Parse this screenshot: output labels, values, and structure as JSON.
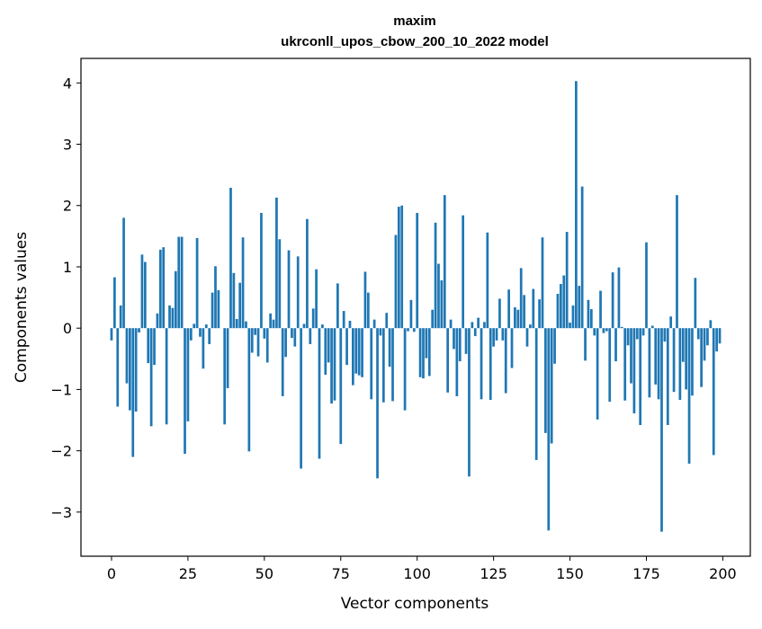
{
  "chart_data": {
    "type": "bar",
    "title_line1": "maxim",
    "title_line2": "ukrconll_upos_cbow_200_10_2022 model",
    "xlabel": "Vector components",
    "ylabel": "Components values",
    "xlim": [
      -10,
      209
    ],
    "ylim": [
      -3.72,
      4.4
    ],
    "xticks": [
      0,
      25,
      50,
      75,
      100,
      125,
      150,
      175,
      200
    ],
    "yticks": [
      -3,
      -2,
      -1,
      0,
      1,
      2,
      3,
      4
    ],
    "xtick_labels": [
      "0",
      "25",
      "50",
      "75",
      "100",
      "125",
      "150",
      "175",
      "200"
    ],
    "ytick_labels": [
      "−3",
      "−2",
      "−1",
      "0",
      "1",
      "2",
      "3",
      "4"
    ],
    "bar_color": "#1f77b4",
    "grid": false,
    "values": [
      -0.2,
      0.83,
      -1.28,
      0.37,
      1.8,
      -0.9,
      -1.34,
      -2.1,
      -1.36,
      -0.07,
      1.2,
      1.08,
      -0.57,
      -1.6,
      -0.6,
      0.24,
      1.28,
      1.32,
      -1.57,
      0.37,
      0.33,
      0.93,
      1.49,
      1.49,
      -2.05,
      -1.52,
      -0.2,
      0.07,
      1.47,
      -0.14,
      -0.66,
      0.06,
      -0.26,
      0.58,
      1.01,
      0.62,
      0.0,
      -1.57,
      -0.98,
      2.29,
      0.9,
      0.15,
      0.74,
      1.48,
      0.11,
      -2.01,
      -0.4,
      -0.11,
      -0.46,
      1.88,
      -0.17,
      -0.56,
      0.24,
      0.14,
      2.13,
      1.45,
      -1.11,
      -0.47,
      1.27,
      -0.16,
      -0.3,
      1.17,
      -2.29,
      0.07,
      1.78,
      -0.26,
      0.32,
      0.96,
      -2.13,
      0.06,
      -0.76,
      -0.56,
      -1.23,
      -1.18,
      0.73,
      -1.89,
      0.28,
      -0.6,
      0.12,
      -0.93,
      -0.74,
      -0.77,
      -0.8,
      0.92,
      0.58,
      -1.16,
      0.14,
      -2.45,
      -0.12,
      -1.21,
      0.25,
      -0.63,
      -1.19,
      1.52,
      1.98,
      2.0,
      -1.34,
      -0.05,
      0.46,
      -0.06,
      1.88,
      -0.8,
      -0.82,
      -0.49,
      -0.78,
      0.3,
      1.72,
      1.05,
      0.78,
      2.17,
      -1.05,
      0.14,
      -0.34,
      -1.11,
      -0.54,
      1.84,
      -0.42,
      -2.42,
      0.1,
      -0.13,
      0.17,
      -1.16,
      0.1,
      1.56,
      -1.17,
      -0.3,
      -0.2,
      0.48,
      -0.2,
      -1.06,
      0.63,
      -0.65,
      0.34,
      0.3,
      0.98,
      0.54,
      -0.3,
      0.06,
      0.64,
      -2.15,
      0.47,
      1.48,
      -1.71,
      -3.3,
      -1.88,
      -0.58,
      0.56,
      0.72,
      0.86,
      1.57,
      0.09,
      0.37,
      4.03,
      0.69,
      2.31,
      -0.53,
      0.46,
      0.31,
      -0.12,
      -1.49,
      0.61,
      -0.08,
      -0.05,
      -1.2,
      0.91,
      -0.54,
      0.99,
      0.02,
      -1.18,
      -0.28,
      -0.9,
      -1.39,
      -0.18,
      -1.58,
      -0.12,
      1.4,
      -1.13,
      0.04,
      -0.92,
      -1.16,
      -3.32,
      -0.22,
      -1.58,
      0.19,
      -1.04,
      2.17,
      -1.17,
      -0.55,
      -1.0,
      -2.21,
      -1.1,
      0.82,
      -0.18,
      -0.96,
      -0.53,
      -0.28,
      0.13,
      -2.07,
      -0.38,
      -0.25
    ]
  }
}
